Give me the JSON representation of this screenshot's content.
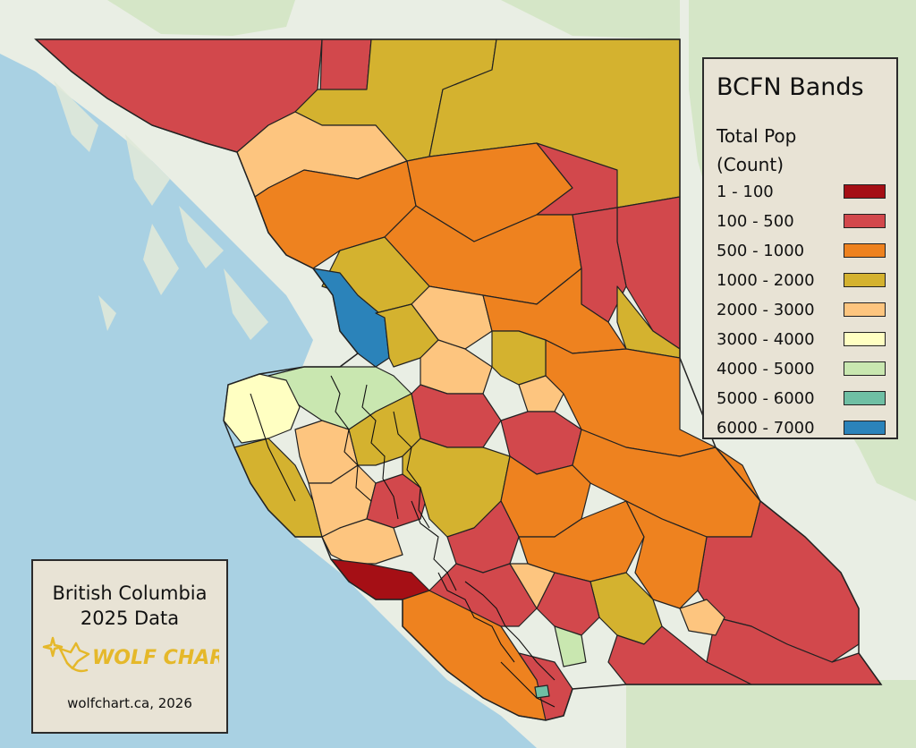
{
  "map": {
    "colors": {
      "water": "#a9d1e3",
      "land": "#e9eee4",
      "forest": "#cfe3bf",
      "border": "#222222"
    }
  },
  "legend": {
    "title": "BCFN Bands",
    "subtitle_line1": "Total Pop",
    "subtitle_line2": "(Count)",
    "items": [
      {
        "label": "1 - 100",
        "color": "#a50f15"
      },
      {
        "label": "100 - 500",
        "color": "#d2484c"
      },
      {
        "label": "500 - 1000",
        "color": "#ee821f"
      },
      {
        "label": "1000 - 2000",
        "color": "#d4b22f"
      },
      {
        "label": "2000 - 3000",
        "color": "#fdc57f"
      },
      {
        "label": "3000 - 4000",
        "color": "#ffffc2"
      },
      {
        "label": "4000 - 5000",
        "color": "#c9e7b0"
      },
      {
        "label": "5000 - 6000",
        "color": "#6fbfa4"
      },
      {
        "label": "6000 - 7000",
        "color": "#2b83ba"
      }
    ]
  },
  "credit": {
    "title_line1": "British Columbia",
    "title_line2": "2025 Data",
    "logo_text": "WOLF CHART",
    "logo_color": "#e5b82a",
    "footer": "wolfchart.ca, 2026"
  }
}
